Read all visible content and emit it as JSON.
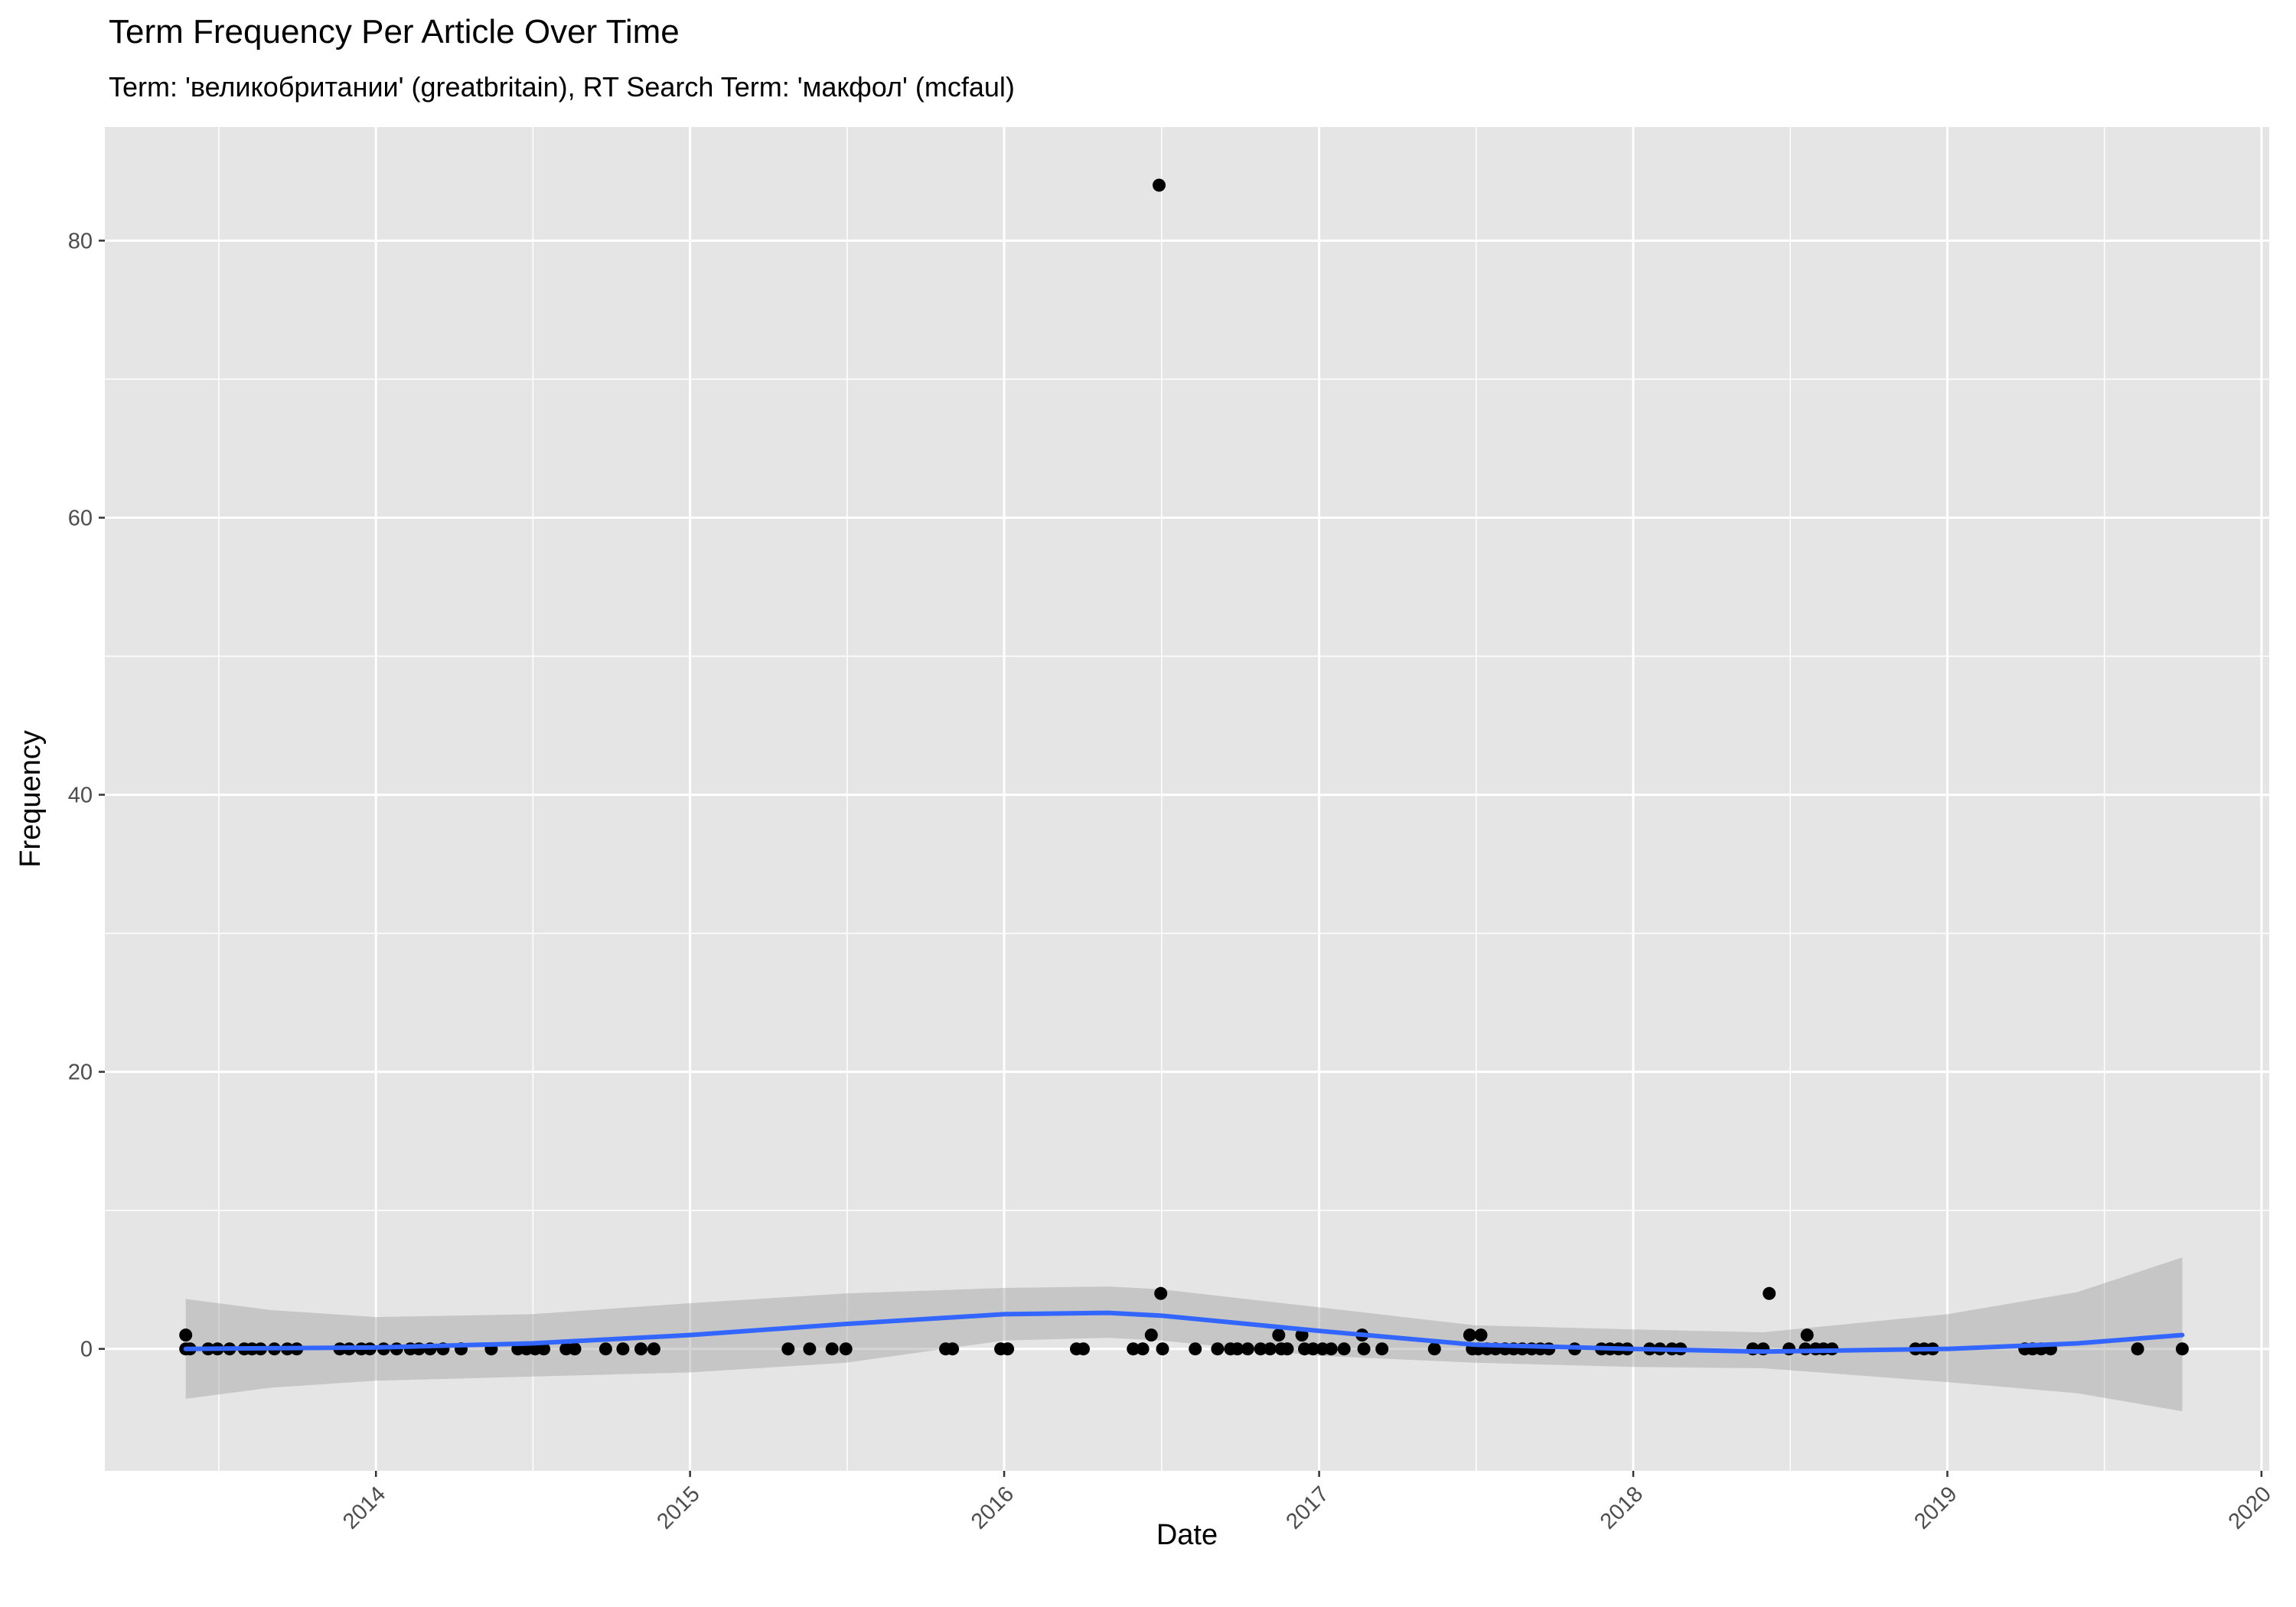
{
  "chart_data": {
    "type": "scatter",
    "title": "Term Frequency Per Article Over Time",
    "subtitle": "Term: 'великобритании' (greatbritain), RT Search Term: 'макфол' (mcfaul)",
    "xlabel": "Date",
    "ylabel": "Frequency",
    "xlim": [
      "2013-02-20",
      "2020-01-10"
    ],
    "ylim": [
      -8.8,
      88.2
    ],
    "x_ticks": [
      "2014-01-01",
      "2015-01-01",
      "2016-01-01",
      "2017-01-01",
      "2018-01-01",
      "2019-01-01",
      "2020-01-01"
    ],
    "x_tick_labels": [
      "2014",
      "2015",
      "2016",
      "2017",
      "2018",
      "2019",
      "2020"
    ],
    "y_ticks": [
      0,
      20,
      40,
      60,
      80
    ],
    "y_tick_labels": [
      "0",
      "20",
      "40",
      "60",
      "80"
    ],
    "grid": true,
    "legend": "none",
    "colors": {
      "panel_background": "#e5e5e5",
      "grid_line": "#ffffff",
      "point": "#000000",
      "smooth_line": "#3366ff",
      "confidence_band": "#999999"
    },
    "points": [
      {
        "x": "2013-05-25",
        "y": 1
      },
      {
        "x": "2013-05-25",
        "y": 0
      },
      {
        "x": "2013-05-30",
        "y": 0
      },
      {
        "x": "2013-06-20",
        "y": 0
      },
      {
        "x": "2013-07-01",
        "y": 0
      },
      {
        "x": "2013-07-15",
        "y": 0
      },
      {
        "x": "2013-08-01",
        "y": 0
      },
      {
        "x": "2013-08-10",
        "y": 0
      },
      {
        "x": "2013-08-20",
        "y": 0
      },
      {
        "x": "2013-09-05",
        "y": 0
      },
      {
        "x": "2013-09-20",
        "y": 0
      },
      {
        "x": "2013-10-01",
        "y": 0
      },
      {
        "x": "2013-11-20",
        "y": 0
      },
      {
        "x": "2013-12-01",
        "y": 0
      },
      {
        "x": "2013-12-15",
        "y": 0
      },
      {
        "x": "2013-12-25",
        "y": 0
      },
      {
        "x": "2014-01-10",
        "y": 0
      },
      {
        "x": "2014-01-25",
        "y": 0
      },
      {
        "x": "2014-02-10",
        "y": 0
      },
      {
        "x": "2014-02-20",
        "y": 0
      },
      {
        "x": "2014-03-05",
        "y": 0
      },
      {
        "x": "2014-03-20",
        "y": 0
      },
      {
        "x": "2014-04-10",
        "y": 0
      },
      {
        "x": "2014-05-15",
        "y": 0
      },
      {
        "x": "2014-06-15",
        "y": 0
      },
      {
        "x": "2014-06-25",
        "y": 0
      },
      {
        "x": "2014-07-05",
        "y": 0
      },
      {
        "x": "2014-07-15",
        "y": 0
      },
      {
        "x": "2014-08-10",
        "y": 0
      },
      {
        "x": "2014-08-20",
        "y": 0
      },
      {
        "x": "2014-09-25",
        "y": 0
      },
      {
        "x": "2014-10-15",
        "y": 0
      },
      {
        "x": "2014-11-05",
        "y": 0
      },
      {
        "x": "2014-11-20",
        "y": 0
      },
      {
        "x": "2015-04-25",
        "y": 0
      },
      {
        "x": "2015-05-20",
        "y": 0
      },
      {
        "x": "2015-06-15",
        "y": 0
      },
      {
        "x": "2015-07-01",
        "y": 0
      },
      {
        "x": "2015-10-25",
        "y": 0
      },
      {
        "x": "2015-11-02",
        "y": 0
      },
      {
        "x": "2015-12-28",
        "y": 0
      },
      {
        "x": "2016-01-05",
        "y": 0
      },
      {
        "x": "2016-03-25",
        "y": 0
      },
      {
        "x": "2016-04-02",
        "y": 0
      },
      {
        "x": "2016-05-30",
        "y": 0
      },
      {
        "x": "2016-06-10",
        "y": 0
      },
      {
        "x": "2016-06-20",
        "y": 1
      },
      {
        "x": "2016-06-29",
        "y": 84
      },
      {
        "x": "2016-07-01",
        "y": 4
      },
      {
        "x": "2016-07-03",
        "y": 0
      },
      {
        "x": "2016-08-10",
        "y": 0
      },
      {
        "x": "2016-09-05",
        "y": 0
      },
      {
        "x": "2016-09-20",
        "y": 0
      },
      {
        "x": "2016-09-28",
        "y": 0
      },
      {
        "x": "2016-10-10",
        "y": 0
      },
      {
        "x": "2016-10-25",
        "y": 0
      },
      {
        "x": "2016-11-05",
        "y": 0
      },
      {
        "x": "2016-11-15",
        "y": 1
      },
      {
        "x": "2016-11-18",
        "y": 0
      },
      {
        "x": "2016-11-25",
        "y": 0
      },
      {
        "x": "2016-12-12",
        "y": 1
      },
      {
        "x": "2016-12-15",
        "y": 0
      },
      {
        "x": "2016-12-25",
        "y": 0
      },
      {
        "x": "2017-01-05",
        "y": 0
      },
      {
        "x": "2017-01-15",
        "y": 0
      },
      {
        "x": "2017-01-30",
        "y": 0
      },
      {
        "x": "2017-02-20",
        "y": 1
      },
      {
        "x": "2017-02-22",
        "y": 0
      },
      {
        "x": "2017-03-15",
        "y": 0
      },
      {
        "x": "2017-05-15",
        "y": 0
      },
      {
        "x": "2017-06-25",
        "y": 1
      },
      {
        "x": "2017-06-28",
        "y": 0
      },
      {
        "x": "2017-07-05",
        "y": 0
      },
      {
        "x": "2017-07-08",
        "y": 1
      },
      {
        "x": "2017-07-15",
        "y": 0
      },
      {
        "x": "2017-07-25",
        "y": 0
      },
      {
        "x": "2017-08-05",
        "y": 0
      },
      {
        "x": "2017-08-15",
        "y": 0
      },
      {
        "x": "2017-08-25",
        "y": 0
      },
      {
        "x": "2017-09-05",
        "y": 0
      },
      {
        "x": "2017-09-15",
        "y": 0
      },
      {
        "x": "2017-09-25",
        "y": 0
      },
      {
        "x": "2017-10-25",
        "y": 0
      },
      {
        "x": "2017-11-25",
        "y": 0
      },
      {
        "x": "2017-12-05",
        "y": 0
      },
      {
        "x": "2017-12-15",
        "y": 0
      },
      {
        "x": "2017-12-25",
        "y": 0
      },
      {
        "x": "2018-01-20",
        "y": 0
      },
      {
        "x": "2018-02-01",
        "y": 0
      },
      {
        "x": "2018-02-15",
        "y": 0
      },
      {
        "x": "2018-02-25",
        "y": 0
      },
      {
        "x": "2018-05-20",
        "y": 0
      },
      {
        "x": "2018-06-01",
        "y": 0
      },
      {
        "x": "2018-06-08",
        "y": 4
      },
      {
        "x": "2018-07-01",
        "y": 0
      },
      {
        "x": "2018-07-20",
        "y": 0
      },
      {
        "x": "2018-07-22",
        "y": 1
      },
      {
        "x": "2018-08-01",
        "y": 0
      },
      {
        "x": "2018-08-10",
        "y": 0
      },
      {
        "x": "2018-08-20",
        "y": 0
      },
      {
        "x": "2018-11-25",
        "y": 0
      },
      {
        "x": "2018-12-05",
        "y": 0
      },
      {
        "x": "2018-12-15",
        "y": 0
      },
      {
        "x": "2019-04-01",
        "y": 0
      },
      {
        "x": "2019-04-10",
        "y": 0
      },
      {
        "x": "2019-04-20",
        "y": 0
      },
      {
        "x": "2019-05-01",
        "y": 0
      },
      {
        "x": "2019-08-10",
        "y": 0
      },
      {
        "x": "2019-10-01",
        "y": 0
      }
    ],
    "smooth": {
      "x": [
        "2013-05-25",
        "2013-09-01",
        "2014-01-01",
        "2014-07-01",
        "2015-01-01",
        "2015-07-01",
        "2016-01-01",
        "2016-05-01",
        "2016-07-01",
        "2017-01-01",
        "2017-07-01",
        "2018-01-01",
        "2018-06-01",
        "2019-01-01",
        "2019-06-01",
        "2019-10-01"
      ],
      "y": [
        0.0,
        0.05,
        0.1,
        0.4,
        1.0,
        1.8,
        2.5,
        2.6,
        2.4,
        1.3,
        0.3,
        0.0,
        -0.2,
        0.0,
        0.4,
        1.0
      ],
      "ymin": [
        -3.6,
        -2.8,
        -2.3,
        -2.0,
        -1.7,
        -1.0,
        0.6,
        0.8,
        0.6,
        -0.5,
        -1.0,
        -1.3,
        -1.4,
        -2.4,
        -3.2,
        -4.5
      ],
      "ymax": [
        3.6,
        2.8,
        2.3,
        2.5,
        3.3,
        4.0,
        4.4,
        4.5,
        4.3,
        3.0,
        1.7,
        1.4,
        1.2,
        2.5,
        4.1,
        6.6
      ]
    }
  }
}
